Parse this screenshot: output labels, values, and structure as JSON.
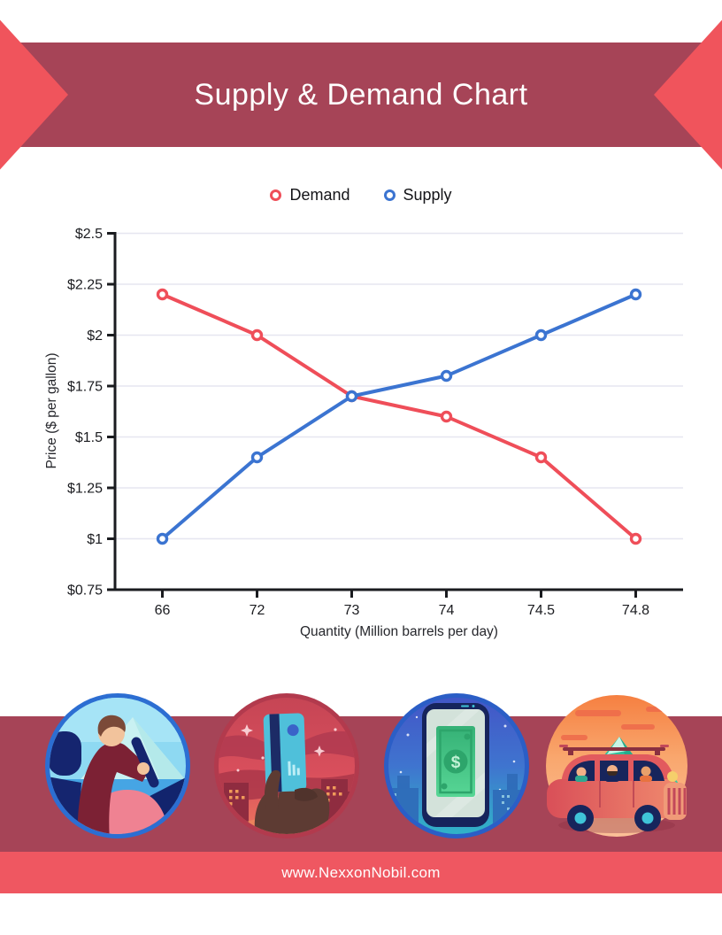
{
  "page": {
    "title_banner": {
      "title": "Supply & Demand Chart"
    },
    "footer": {
      "url": "www.NexxonNobil.com"
    }
  },
  "colors": {
    "banner_maroon": "#a64457",
    "ribbon_red": "#f0545c",
    "footer_coral": "#ef5761",
    "demand": "#ef4e59",
    "supply": "#3b74d1",
    "gridline": "#e6e6f0",
    "axis": "#1a1b1f"
  },
  "icons": [
    "ribbon-arrow-left",
    "ribbon-arrow-right",
    "driving-car",
    "hand-credit-card",
    "money-smartphone",
    "road-trip-car"
  ],
  "chart_data": {
    "type": "line",
    "title": "Supply & Demand Chart",
    "x_axis": {
      "label": "Quantity (Million barrels per day)",
      "categories": [
        "66",
        "72",
        "73",
        "74",
        "74.5",
        "74.8"
      ],
      "numeric_values": [
        66,
        72,
        73,
        74,
        74.5,
        74.8
      ],
      "spacing": "categorical-even"
    },
    "y_axis": {
      "label": "Price ($ per gallon)",
      "range": [
        0.75,
        2.5
      ],
      "ticks": [
        {
          "value": 2.5,
          "label": "$2.5"
        },
        {
          "value": 2.25,
          "label": "$2.25"
        },
        {
          "value": 2,
          "label": "$2"
        },
        {
          "value": 1.75,
          "label": "$1.75"
        },
        {
          "value": 1.5,
          "label": "$1.5"
        },
        {
          "value": 1.25,
          "label": "$1.25"
        },
        {
          "value": 1,
          "label": "$1"
        },
        {
          "value": 0.75,
          "label": "$0.75"
        }
      ]
    },
    "grid": true,
    "legend": {
      "position": "top"
    },
    "series": [
      {
        "name": "Demand",
        "color": "#ef4e59",
        "values": [
          2.2,
          2.0,
          1.7,
          1.6,
          1.4,
          1.0
        ]
      },
      {
        "name": "Supply",
        "color": "#3b74d1",
        "values": [
          1.0,
          1.4,
          1.7,
          1.8,
          2.0,
          2.2
        ]
      }
    ],
    "equilibrium_point": {
      "quantity": "73",
      "price": 1.7
    }
  }
}
